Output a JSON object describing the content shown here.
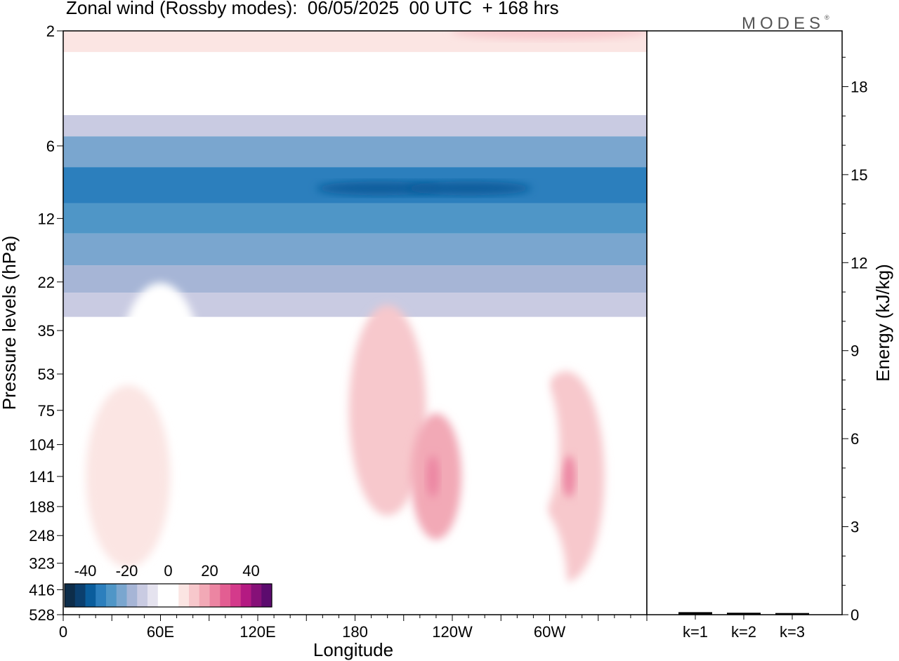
{
  "header": {
    "title": "Zonal wind (Rossby modes):  06/05/2025  00 UTC  + 168 hrs",
    "logo": "MODES",
    "logo_mark": "®"
  },
  "chart_data": [
    {
      "type": "heatmap",
      "title": "Zonal wind (Rossby modes):  06/05/2025  00 UTC  + 168 hrs",
      "xlabel": "Longitude",
      "ylabel": "Pressure levels (hPa)",
      "x_ticks": [
        {
          "lon": 0,
          "label": "0"
        },
        {
          "lon": 60,
          "label": "60E"
        },
        {
          "lon": 120,
          "label": "120E"
        },
        {
          "lon": 180,
          "label": "180"
        },
        {
          "lon": 240,
          "label": "120W"
        },
        {
          "lon": 300,
          "label": "60W"
        }
      ],
      "xlim": [
        0,
        360
      ],
      "y_levels": [
        "2",
        "6",
        "12",
        "22",
        "35",
        "53",
        "75",
        "104",
        "141",
        "188",
        "248",
        "323",
        "416",
        "528"
      ],
      "colorbar": {
        "ticks": [
          "-40",
          "-20",
          "0",
          "20",
          "40"
        ],
        "range": [
          -50,
          50
        ],
        "colors": [
          "#0d2d4a",
          "#0b3f6e",
          "#0a5d9c",
          "#2c7fbd",
          "#4f96c7",
          "#7aa6cf",
          "#a6b5d6",
          "#c9cbe2",
          "#e5e3ef",
          "#ffffff",
          "#ffffff",
          "#fbe5e3",
          "#f7c8cc",
          "#f2a9b6",
          "#ec85a2",
          "#e35e92",
          "#d43a8b",
          "#b41a82",
          "#861078",
          "#5c0b6e"
        ]
      },
      "grid": false,
      "bands": [
        {
          "level": "2",
          "value": 5
        },
        {
          "level": "3",
          "value": 2
        },
        {
          "level": "4",
          "value": -5
        },
        {
          "level": "5",
          "value": -12
        },
        {
          "level": "6",
          "value": -22
        },
        {
          "level": "9",
          "value": -34
        },
        {
          "level": "12",
          "value": -29
        },
        {
          "level": "16",
          "value": -24
        },
        {
          "level": "22",
          "value": -17
        },
        {
          "level": "27",
          "value": -11
        },
        {
          "level": "35",
          "value": -4
        },
        {
          "level": "45",
          "value": 1
        }
      ],
      "features": [
        {
          "lon": 300,
          "level": "2",
          "value": 12
        },
        {
          "lon": 195,
          "level": "9",
          "value": -37
        },
        {
          "lon": 250,
          "level": "9",
          "value": -37
        },
        {
          "lon": 60,
          "level": "53",
          "value": 4
        },
        {
          "lon": 40,
          "level": "141",
          "value": 5
        },
        {
          "lon": 100,
          "level": "141",
          "value": -3
        },
        {
          "lon": 200,
          "level": "75",
          "value": 10
        },
        {
          "lon": 230,
          "level": "141",
          "value": 16
        },
        {
          "lon": 228,
          "level": "141",
          "value": 23
        },
        {
          "lon": 310,
          "level": "141",
          "value": 13
        },
        {
          "lon": 312,
          "level": "141",
          "value": 21
        },
        {
          "lon": 280,
          "level": "104",
          "value": -3
        },
        {
          "lon": 285,
          "level": "416",
          "value": -3
        }
      ]
    },
    {
      "type": "bar",
      "categories": [
        "k=1",
        "k=2",
        "k=3"
      ],
      "values": [
        0.05,
        0.03,
        0.02
      ],
      "ylabel": "Energy (kJ/kg)",
      "ylim": [
        0,
        19.9
      ],
      "y_ticks": [
        0,
        3,
        6,
        9,
        12,
        15,
        18
      ]
    }
  ]
}
